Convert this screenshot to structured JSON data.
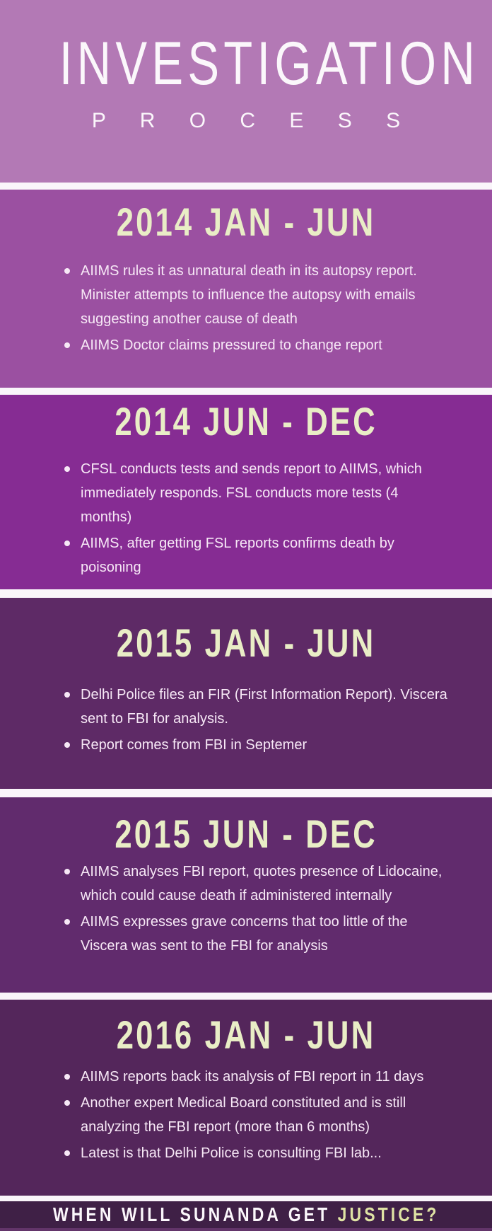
{
  "header": {
    "title": "INVESTIGATION",
    "subtitle": "P R O C E S S"
  },
  "sections": [
    {
      "period": "2014 JAN - JUN",
      "bullets": [
        "AIIMS rules it as unnatural death in its autopsy report. Minister attempts to influence the autopsy with emails suggesting another cause of death",
        "AIIMS Doctor claims pressured to change report"
      ]
    },
    {
      "period": "2014 JUN - DEC",
      "bullets": [
        "CFSL conducts tests and sends report to AIIMS, which immediately responds. FSL conducts more tests (4 months)",
        "AIIMS, after getting FSL reports confirms death by poisoning"
      ]
    },
    {
      "period": "2015 JAN - JUN",
      "bullets": [
        "Delhi Police files an FIR (First Information Report). Viscera sent to FBI for analysis.",
        "Report comes from FBI in Septemer"
      ]
    },
    {
      "period": "2015 JUN - DEC",
      "bullets": [
        "AIIMS analyses FBI report, quotes presence of Lidocaine, which could cause death if administered internally",
        "AIIMS expresses grave concerns that too little of the Viscera was sent to the FBI for analysis"
      ]
    },
    {
      "period": "2016 JAN - JUN",
      "bullets": [
        "AIIMS reports back its analysis of FBI report in 11 days",
        "Another expert Medical Board constituted and is still analyzing the FBI report (more than 6 months)",
        "Latest is that Delhi Police is consulting FBI lab..."
      ]
    }
  ],
  "footer": {
    "question_white": "WHEN WILL SUNANDA GET",
    "question_highlight": "JUSTICE?"
  },
  "colors": {
    "header_bg": "#b379b5",
    "section1_bg": "#9b50a1",
    "section2_bg": "#862c93",
    "section3_bg": "#5e2a66",
    "section4_bg": "#612b6d",
    "section5_bg": "#54265b",
    "footer_bg": "#3f2046",
    "bottom_strip_bg": "#63356a",
    "divider_bg": "#faf5fa",
    "title_text": "#fbf7fb",
    "heading_text": "#e9edc6",
    "body_text": "#f7e8f6",
    "highlight_text": "#dfe3a4"
  }
}
